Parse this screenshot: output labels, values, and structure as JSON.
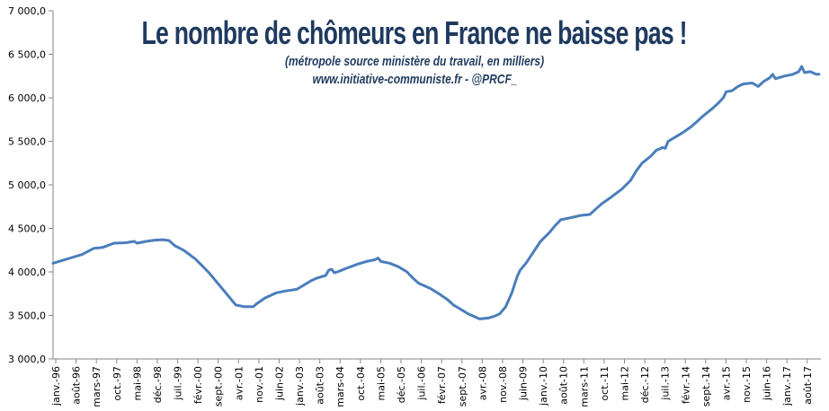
{
  "chart_data": {
    "type": "line",
    "title": "Le nombre de chômeurs en France ne baisse pas !",
    "subtitle": "(métropole source ministère du travail, en milliers)",
    "source": "www.initiative-communiste.fr - @PRCF_",
    "xlabel": "",
    "ylabel": "",
    "ylim": [
      3000,
      7000
    ],
    "yticks": [
      "3 000,0",
      "3 500,0",
      "4 000,0",
      "4 500,0",
      "5 000,0",
      "5 500,0",
      "6 000,0",
      "6 500,0",
      "7 000,0"
    ],
    "xticks": [
      "janv.-96",
      "août-96",
      "mars-97",
      "oct.-97",
      "mai-98",
      "déc.-98",
      "juil.-99",
      "févr.-00",
      "sept.-00",
      "avr.-01",
      "nov.-01",
      "juin-02",
      "janv.-03",
      "août-03",
      "mars-04",
      "oct.-04",
      "mai-05",
      "déc.-05",
      "juil.-06",
      "févr.-07",
      "sept.-07",
      "avr.-08",
      "nov.-08",
      "juin-09",
      "janv.-10",
      "août-10",
      "mars-11",
      "oct.-11",
      "mai-12",
      "déc.-12",
      "juil.-13",
      "févr.-14",
      "sept.-14",
      "avr.-15",
      "nov.-15",
      "juin-16",
      "janv.-17",
      "août-17"
    ],
    "grid": false,
    "legend": "none",
    "line_color": "#4a7ebb",
    "title_color": "#1f3a5f",
    "points": [
      [
        "1996-01",
        4100
      ],
      [
        "1996-04",
        4130
      ],
      [
        "1996-08",
        4170
      ],
      [
        "1996-11",
        4200
      ],
      [
        "1997-03",
        4270
      ],
      [
        "1997-06",
        4280
      ],
      [
        "1997-10",
        4330
      ],
      [
        "1998-02",
        4335
      ],
      [
        "1998-05",
        4350
      ],
      [
        "1998-06",
        4330
      ],
      [
        "1998-09",
        4350
      ],
      [
        "1998-12",
        4365
      ],
      [
        "1999-03",
        4370
      ],
      [
        "1999-05",
        4360
      ],
      [
        "1999-07",
        4300
      ],
      [
        "1999-10",
        4250
      ],
      [
        "2000-02",
        4150
      ],
      [
        "2000-05",
        4050
      ],
      [
        "2000-07",
        3980
      ],
      [
        "2000-09",
        3900
      ],
      [
        "2000-12",
        3780
      ],
      [
        "2001-02",
        3700
      ],
      [
        "2001-04",
        3620
      ],
      [
        "2001-07",
        3600
      ],
      [
        "2001-10",
        3600
      ],
      [
        "2001-11",
        3630
      ],
      [
        "2002-02",
        3700
      ],
      [
        "2002-06",
        3760
      ],
      [
        "2002-09",
        3780
      ],
      [
        "2003-01",
        3800
      ],
      [
        "2003-04",
        3860
      ],
      [
        "2003-06",
        3900
      ],
      [
        "2003-08",
        3930
      ],
      [
        "2003-11",
        3960
      ],
      [
        "2003-12",
        4020
      ],
      [
        "2004-01",
        4030
      ],
      [
        "2004-02",
        3990
      ],
      [
        "2004-03",
        4000
      ],
      [
        "2004-06",
        4040
      ],
      [
        "2004-10",
        4090
      ],
      [
        "2005-01",
        4120
      ],
      [
        "2005-04",
        4140
      ],
      [
        "2005-05",
        4160
      ],
      [
        "2005-06",
        4120
      ],
      [
        "2005-09",
        4100
      ],
      [
        "2005-12",
        4060
      ],
      [
        "2006-03",
        4000
      ],
      [
        "2006-05",
        3930
      ],
      [
        "2006-07",
        3870
      ],
      [
        "2006-11",
        3810
      ],
      [
        "2007-02",
        3750
      ],
      [
        "2007-05",
        3680
      ],
      [
        "2007-07",
        3620
      ],
      [
        "2007-09",
        3580
      ],
      [
        "2007-12",
        3520
      ],
      [
        "2008-02",
        3490
      ],
      [
        "2008-04",
        3460
      ],
      [
        "2008-07",
        3470
      ],
      [
        "2008-09",
        3490
      ],
      [
        "2008-11",
        3520
      ],
      [
        "2009-01",
        3600
      ],
      [
        "2009-03",
        3750
      ],
      [
        "2009-05",
        3950
      ],
      [
        "2009-06",
        4020
      ],
      [
        "2009-08",
        4100
      ],
      [
        "2009-10",
        4200
      ],
      [
        "2010-01",
        4350
      ],
      [
        "2010-04",
        4450
      ],
      [
        "2010-06",
        4530
      ],
      [
        "2010-08",
        4600
      ],
      [
        "2010-11",
        4620
      ],
      [
        "2011-03",
        4650
      ],
      [
        "2011-06",
        4660
      ],
      [
        "2011-08",
        4720
      ],
      [
        "2011-10",
        4780
      ],
      [
        "2012-01",
        4850
      ],
      [
        "2012-03",
        4900
      ],
      [
        "2012-05",
        4950
      ],
      [
        "2012-08",
        5050
      ],
      [
        "2012-10",
        5160
      ],
      [
        "2012-12",
        5250
      ],
      [
        "2013-03",
        5330
      ],
      [
        "2013-05",
        5400
      ],
      [
        "2013-06",
        5410
      ],
      [
        "2013-07",
        5430
      ],
      [
        "2013-08",
        5420
      ],
      [
        "2013-09",
        5500
      ],
      [
        "2013-11",
        5540
      ],
      [
        "2014-02",
        5600
      ],
      [
        "2014-05",
        5670
      ],
      [
        "2014-07",
        5730
      ],
      [
        "2014-09",
        5790
      ],
      [
        "2014-12",
        5870
      ],
      [
        "2015-02",
        5930
      ],
      [
        "2015-04",
        6000
      ],
      [
        "2015-05",
        6070
      ],
      [
        "2015-07",
        6080
      ],
      [
        "2015-09",
        6130
      ],
      [
        "2015-11",
        6160
      ],
      [
        "2016-02",
        6170
      ],
      [
        "2016-04",
        6130
      ],
      [
        "2016-06",
        6190
      ],
      [
        "2016-08",
        6230
      ],
      [
        "2016-09",
        6270
      ],
      [
        "2016-10",
        6220
      ],
      [
        "2017-01",
        6250
      ],
      [
        "2017-04",
        6270
      ],
      [
        "2017-06",
        6300
      ],
      [
        "2017-07",
        6360
      ],
      [
        "2017-08",
        6290
      ],
      [
        "2017-10",
        6300
      ],
      [
        "2017-12",
        6270
      ],
      [
        "2018-01",
        6270
      ]
    ]
  }
}
